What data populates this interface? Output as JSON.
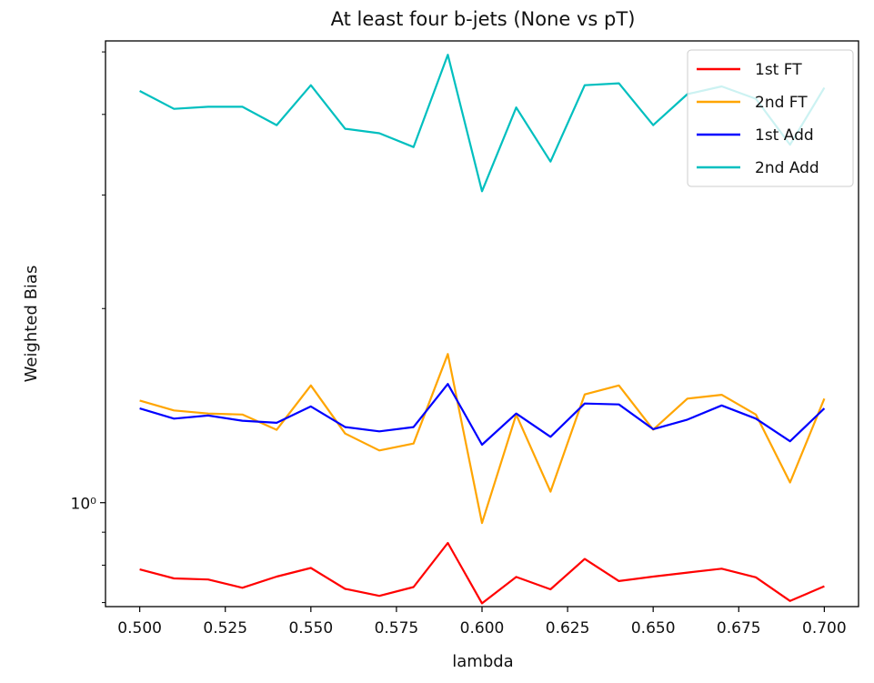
{
  "chart_data": {
    "type": "line",
    "title": "At least four b-jets (None vs pT)",
    "xlabel": "lambda",
    "ylabel": "Weighted Bias",
    "yscale": "log",
    "xlim": [
      0.49,
      0.71
    ],
    "ylim": [
      0.69,
      5.2
    ],
    "x_ticks": [
      "0.500",
      "0.525",
      "0.550",
      "0.575",
      "0.600",
      "0.625",
      "0.650",
      "0.675",
      "0.700"
    ],
    "y_tick_major": "10⁰",
    "grid": false,
    "legend_position": "top-right",
    "x": [
      0.5,
      0.51,
      0.52,
      0.53,
      0.54,
      0.55,
      0.56,
      0.57,
      0.58,
      0.59,
      0.6,
      0.61,
      0.62,
      0.63,
      0.64,
      0.65,
      0.66,
      0.67,
      0.68,
      0.69,
      0.7
    ],
    "series": [
      {
        "name": "1st FT",
        "color": "#ff0000",
        "values": [
          0.788,
          0.763,
          0.76,
          0.738,
          0.768,
          0.792,
          0.735,
          0.717,
          0.74,
          0.866,
          0.698,
          0.767,
          0.734,
          0.818,
          0.756,
          0.768,
          0.779,
          0.79,
          0.766,
          0.704,
          0.742
        ]
      },
      {
        "name": "2nd FT",
        "color": "#ffa500",
        "values": [
          1.44,
          1.39,
          1.375,
          1.37,
          1.297,
          1.52,
          1.28,
          1.205,
          1.235,
          1.7,
          0.93,
          1.37,
          1.04,
          1.472,
          1.52,
          1.298,
          1.45,
          1.47,
          1.37,
          1.075,
          1.45
        ]
      },
      {
        "name": "1st Add",
        "color": "#0000ff",
        "values": [
          1.4,
          1.35,
          1.365,
          1.34,
          1.33,
          1.41,
          1.31,
          1.29,
          1.31,
          1.528,
          1.23,
          1.375,
          1.265,
          1.425,
          1.42,
          1.3,
          1.345,
          1.415,
          1.35,
          1.245,
          1.4
        ]
      },
      {
        "name": "2nd Add",
        "color": "#00bfbf",
        "values": [
          4.35,
          4.08,
          4.11,
          4.11,
          3.85,
          4.44,
          3.8,
          3.74,
          3.56,
          4.95,
          3.04,
          4.1,
          3.38,
          4.44,
          4.47,
          3.85,
          4.3,
          4.42,
          4.23,
          3.59,
          4.4
        ]
      }
    ]
  }
}
